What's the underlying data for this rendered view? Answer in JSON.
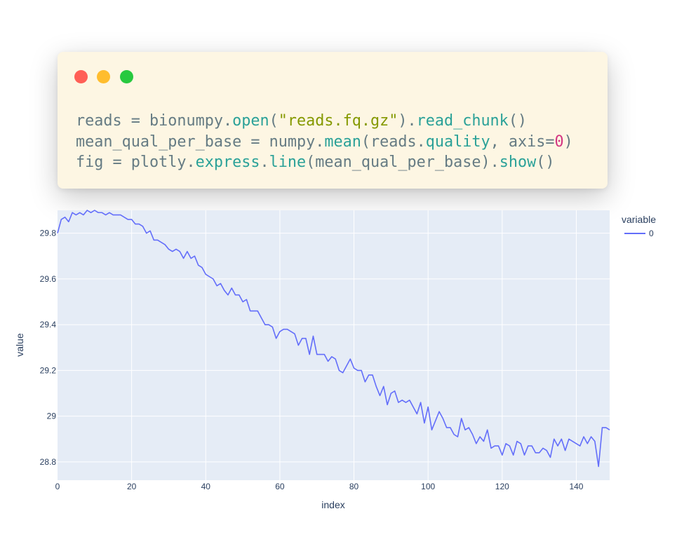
{
  "code_window": {
    "lines": [
      [
        {
          "t": "reads = bionumpy.",
          "c": "plain"
        },
        {
          "t": "open",
          "c": "fn"
        },
        {
          "t": "(",
          "c": "plain"
        },
        {
          "t": "\"reads.fq.gz\"",
          "c": "str"
        },
        {
          "t": ").",
          "c": "plain"
        },
        {
          "t": "read_chunk",
          "c": "fn"
        },
        {
          "t": "()",
          "c": "plain"
        }
      ],
      [
        {
          "t": "mean_qual_per_base = numpy.",
          "c": "plain"
        },
        {
          "t": "mean",
          "c": "fn"
        },
        {
          "t": "(reads.",
          "c": "plain"
        },
        {
          "t": "quality",
          "c": "fn"
        },
        {
          "t": ", axis=",
          "c": "plain"
        },
        {
          "t": "0",
          "c": "num"
        },
        {
          "t": ")",
          "c": "plain"
        }
      ],
      [
        {
          "t": "fig = plotly.",
          "c": "plain"
        },
        {
          "t": "express",
          "c": "fn"
        },
        {
          "t": ".",
          "c": "plain"
        },
        {
          "t": "line",
          "c": "fn"
        },
        {
          "t": "(mean_qual_per_base).",
          "c": "plain"
        },
        {
          "t": "show",
          "c": "fn"
        },
        {
          "t": "()",
          "c": "plain"
        }
      ]
    ]
  },
  "chart_data": {
    "type": "line",
    "title": "",
    "xlabel": "index",
    "ylabel": "value",
    "xlim": [
      0,
      149
    ],
    "ylim": [
      28.72,
      29.9
    ],
    "x_ticks": [
      0,
      20,
      40,
      60,
      80,
      100,
      120,
      140
    ],
    "y_ticks": [
      28.8,
      29,
      29.2,
      29.4,
      29.6,
      29.8
    ],
    "y_tick_labels": [
      "28.8",
      "29",
      "29.2",
      "29.4",
      "29.6",
      "29.8"
    ],
    "legend": {
      "title": "variable",
      "placement": "top-right"
    },
    "grid": true,
    "colors": {
      "line": "#636efa",
      "plot_bg": "#e5ecf6",
      "grid": "#ffffff",
      "text": "#2a3f5f"
    },
    "series": [
      {
        "name": "0",
        "x": [
          0,
          1,
          2,
          3,
          4,
          5,
          6,
          7,
          8,
          9,
          10,
          11,
          12,
          13,
          14,
          15,
          16,
          17,
          18,
          19,
          20,
          21,
          22,
          23,
          24,
          25,
          26,
          27,
          28,
          29,
          30,
          31,
          32,
          33,
          34,
          35,
          36,
          37,
          38,
          39,
          40,
          41,
          42,
          43,
          44,
          45,
          46,
          47,
          48,
          49,
          50,
          51,
          52,
          53,
          54,
          55,
          56,
          57,
          58,
          59,
          60,
          61,
          62,
          63,
          64,
          65,
          66,
          67,
          68,
          69,
          70,
          71,
          72,
          73,
          74,
          75,
          76,
          77,
          78,
          79,
          80,
          81,
          82,
          83,
          84,
          85,
          86,
          87,
          88,
          89,
          90,
          91,
          92,
          93,
          94,
          95,
          96,
          97,
          98,
          99,
          100,
          101,
          102,
          103,
          104,
          105,
          106,
          107,
          108,
          109,
          110,
          111,
          112,
          113,
          114,
          115,
          116,
          117,
          118,
          119,
          120,
          121,
          122,
          123,
          124,
          125,
          126,
          127,
          128,
          129,
          130,
          131,
          132,
          133,
          134,
          135,
          136,
          137,
          138,
          139,
          140,
          141,
          142,
          143,
          144,
          145,
          146,
          147,
          148,
          149
        ],
        "values": [
          29.8,
          29.86,
          29.87,
          29.85,
          29.89,
          29.88,
          29.89,
          29.88,
          29.9,
          29.89,
          29.9,
          29.89,
          29.89,
          29.88,
          29.89,
          29.88,
          29.88,
          29.88,
          29.87,
          29.86,
          29.86,
          29.84,
          29.84,
          29.83,
          29.8,
          29.81,
          29.77,
          29.77,
          29.76,
          29.75,
          29.73,
          29.72,
          29.73,
          29.72,
          29.69,
          29.72,
          29.69,
          29.7,
          29.66,
          29.65,
          29.62,
          29.61,
          29.6,
          29.57,
          29.58,
          29.55,
          29.53,
          29.56,
          29.53,
          29.53,
          29.5,
          29.51,
          29.46,
          29.46,
          29.46,
          29.43,
          29.4,
          29.4,
          29.39,
          29.34,
          29.37,
          29.38,
          29.38,
          29.37,
          29.36,
          29.31,
          29.34,
          29.34,
          29.27,
          29.35,
          29.27,
          29.27,
          29.27,
          29.24,
          29.26,
          29.25,
          29.2,
          29.19,
          29.22,
          29.25,
          29.21,
          29.2,
          29.2,
          29.15,
          29.18,
          29.18,
          29.13,
          29.09,
          29.13,
          29.05,
          29.1,
          29.11,
          29.06,
          29.07,
          29.06,
          29.07,
          29.04,
          29.01,
          29.06,
          28.97,
          29.04,
          28.94,
          28.98,
          29.02,
          28.99,
          28.95,
          28.95,
          28.92,
          28.91,
          28.99,
          28.94,
          28.95,
          28.92,
          28.88,
          28.91,
          28.89,
          28.94,
          28.86,
          28.87,
          28.87,
          28.83,
          28.88,
          28.87,
          28.83,
          28.89,
          28.88,
          28.83,
          28.87,
          28.87,
          28.84,
          28.84,
          28.86,
          28.85,
          28.82,
          28.9,
          28.87,
          28.9,
          28.85,
          28.9,
          28.89,
          28.88,
          28.87,
          28.91,
          28.88,
          28.91,
          28.89,
          28.78,
          28.95,
          28.95,
          28.94
        ]
      }
    ]
  }
}
